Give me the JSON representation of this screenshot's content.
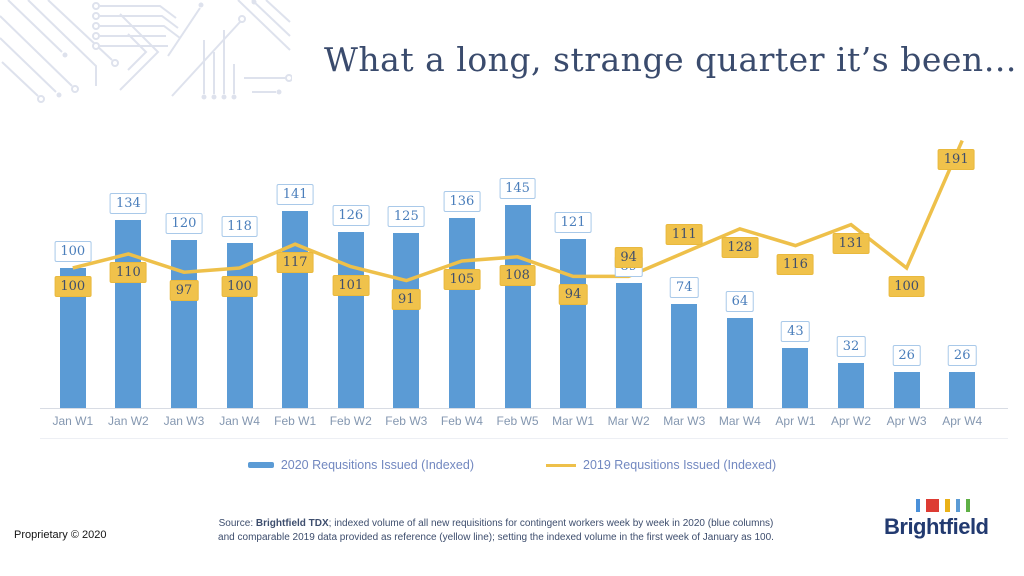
{
  "title": "What a long, strange quarter it’s been…",
  "chart_data": {
    "type": "bar",
    "categories": [
      "Jan W1",
      "Jan W2",
      "Jan W3",
      "Jan W4",
      "Feb W1",
      "Feb W2",
      "Feb W3",
      "Feb W4",
      "Feb W5",
      "Mar W1",
      "Mar W2",
      "Mar W3",
      "Mar W4",
      "Apr W1",
      "Apr W2",
      "Apr W3",
      "Apr W4"
    ],
    "series": [
      {
        "name": "2020 Requsitions Issued (Indexed)",
        "type": "bar",
        "color": "#5b9bd5",
        "values": [
          100,
          134,
          120,
          118,
          141,
          126,
          125,
          136,
          145,
          121,
          89,
          74,
          64,
          43,
          32,
          26,
          26
        ]
      },
      {
        "name": "2019 Requsitions Issued (Indexed)",
        "type": "line",
        "color": "#eec04a",
        "values": [
          100,
          110,
          97,
          100,
          117,
          101,
          91,
          105,
          108,
          94,
          94,
          111,
          128,
          116,
          131,
          100,
          191
        ]
      }
    ],
    "title": "What a long, strange quarter it’s been…",
    "xlabel": "",
    "ylabel": "",
    "ylim": [
      0,
      200
    ],
    "grid": false,
    "y_axis_visible": false,
    "data_labels": true,
    "legend_position": "bottom"
  },
  "footer": {
    "proprietary": "Proprietary © 2020",
    "source": {
      "prefix": "Source: ",
      "brand": "Brightfield TDX",
      "line1_rest": "; indexed volume of all new requisitions for contingent workers week by week in 2020 (blue columns)",
      "line2": "and comparable 2019 data provided as reference (yellow line); setting the indexed volume in the first week of January as 100."
    },
    "logo_text": "Brightfield"
  },
  "colors": {
    "bar_blue": "#5b9bd5",
    "line_yellow": "#eec04a",
    "bar_label_text": "#4a7ebb",
    "bar_label_border": "#a9c9e9",
    "line_label_bg": "#f0c24b",
    "line_label_text": "#3f4e6d",
    "axis_label": "#8497b0",
    "title_text": "#3a4b6d",
    "legend_text": "#7288c0",
    "source_text": "#3d4d6d",
    "logo_navy": "#223a70",
    "logo_marks": [
      "#4a90d9",
      "#dd3b33",
      "#eab117",
      "#5b9bd5",
      "#5fb045"
    ]
  }
}
